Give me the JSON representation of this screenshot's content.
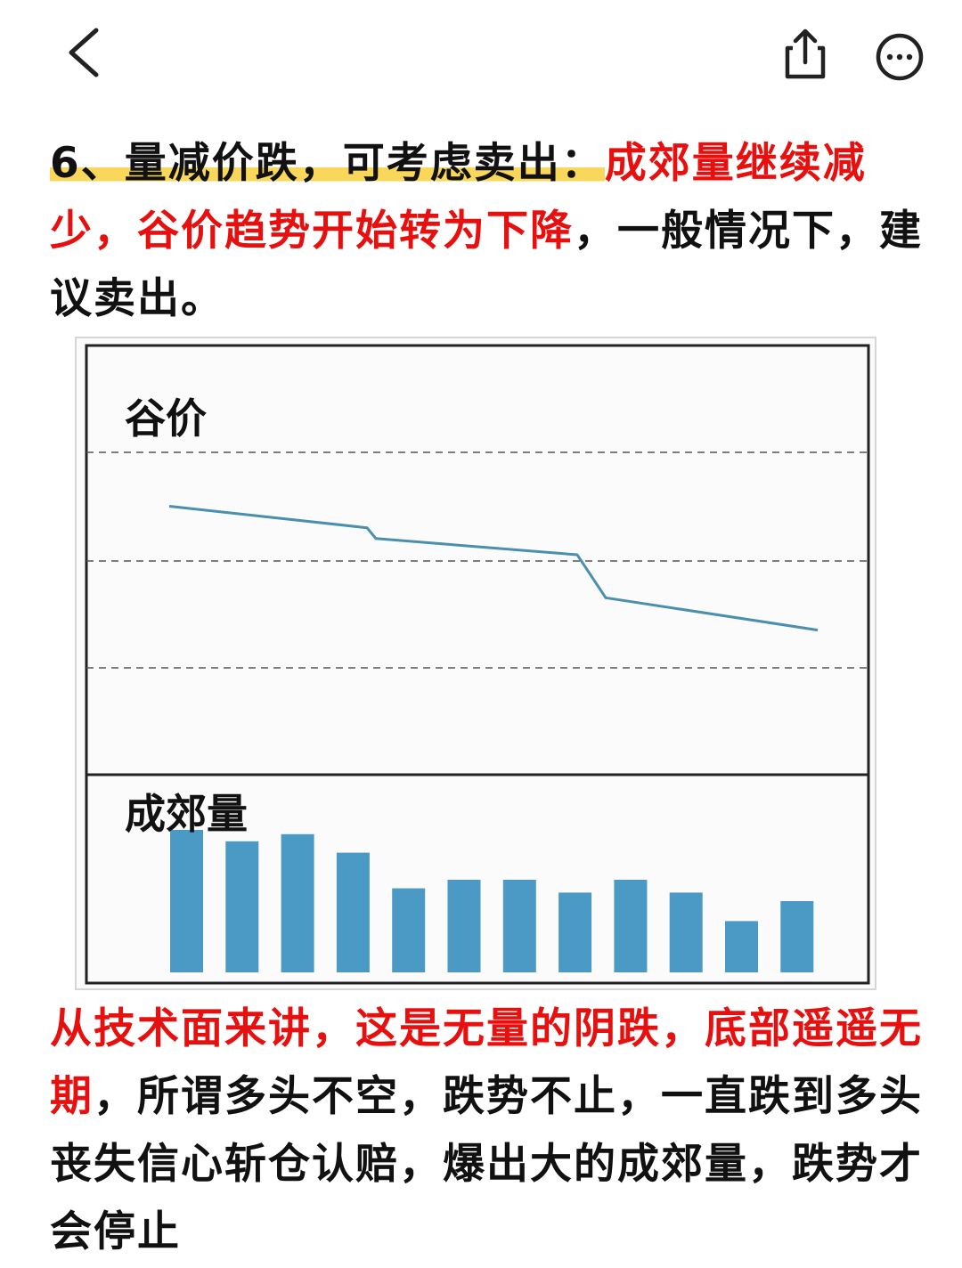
{
  "nav": {
    "back_icon": "chevron-left-icon",
    "share_icon": "share-icon",
    "more_icon": "more-icon"
  },
  "paragraph1": {
    "heading": "6、量减价跌，可考虑卖出：",
    "red": "成郊量继续减少，谷价趋势开始转为下降",
    "rest": "，一般情况下，建议卖出。"
  },
  "chart": {
    "price_label": "谷价",
    "volume_label": "成郊量"
  },
  "chart_data": {
    "type": "line+bar",
    "price_series": [
      10.0,
      9.6,
      9.4,
      9.1,
      8.3,
      7.7
    ],
    "price_breaks": [
      2,
      4
    ],
    "volume_values": [
      100,
      92,
      97,
      84,
      59,
      65,
      65,
      56,
      65,
      56,
      36,
      50
    ],
    "colors": {
      "line": "#4a8fae",
      "bar": "#4b9ac6",
      "red": "#e8100f",
      "highlight": "#f8d75a"
    }
  },
  "paragraph2": {
    "red": "从技术面来讲，这是无量的阴跌，底部遥遥无期",
    "rest": "，所谓多头不空，跌势不止，一直跌到多头丧失信心斩仓认赔，爆出大的成郊量，跌势才会停止"
  }
}
